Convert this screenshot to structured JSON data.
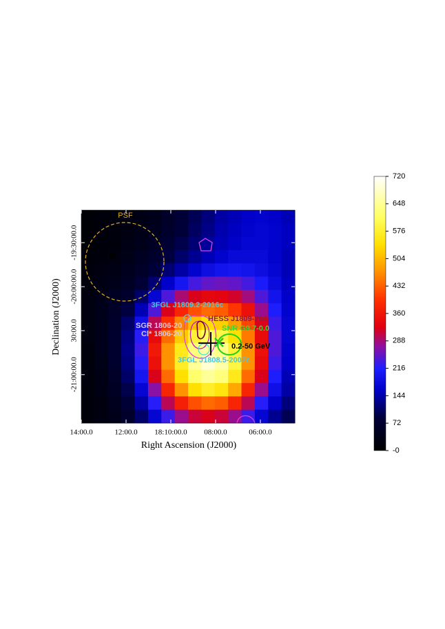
{
  "chart_data": {
    "type": "heatmap",
    "xlabel": "Right Ascension (J2000)",
    "ylabel": "Declination (J2000)",
    "xlim": [
      14,
      4.46
    ],
    "ylim": [
      -21.55,
      -19.13
    ],
    "xticks": [
      {
        "value": 14,
        "label": "14:00.0"
      },
      {
        "value": 12,
        "label": "12:00.0"
      },
      {
        "value": 10,
        "label": "18:10:00.0"
      },
      {
        "value": 8,
        "label": "08:00.0"
      },
      {
        "value": 6,
        "label": "06:00.0"
      }
    ],
    "yticks": [
      {
        "value": -19.5,
        "label": "-19:30:00.0"
      },
      {
        "value": -20.0,
        "label": "-20:00:00.0"
      },
      {
        "value": -20.5,
        "label": "30:00.0"
      },
      {
        "value": -21.0,
        "label": "-21:00:00.0"
      }
    ],
    "zlim": [
      0,
      720
    ],
    "zticks": [
      {
        "value": 0,
        "label": "-0"
      },
      72,
      144,
      216,
      288,
      360,
      432,
      504,
      576,
      648,
      720
    ],
    "annotations": [
      "PSF",
      "3FGL J1809.2-2016c",
      "HESS J1809-204",
      "SNR G9.7-0.0",
      "SGR 1806-20",
      "Cl* 1806-20",
      "0.2-50 GeV",
      "3FGL J1808.5-2007c"
    ],
    "z": [
      [
        10,
        15,
        20,
        25,
        30,
        40,
        60,
        80,
        100,
        120,
        140,
        150,
        160,
        165,
        160,
        150
      ],
      [
        10,
        15,
        20,
        25,
        35,
        45,
        65,
        85,
        105,
        125,
        145,
        155,
        165,
        170,
        165,
        155
      ],
      [
        10,
        15,
        20,
        30,
        40,
        55,
        75,
        95,
        115,
        135,
        150,
        160,
        170,
        170,
        165,
        155
      ],
      [
        15,
        20,
        25,
        35,
        50,
        65,
        90,
        110,
        130,
        150,
        165,
        175,
        175,
        175,
        165,
        150
      ],
      [
        20,
        25,
        30,
        45,
        60,
        85,
        115,
        140,
        165,
        185,
        195,
        200,
        195,
        185,
        170,
        150
      ],
      [
        20,
        30,
        40,
        55,
        80,
        115,
        160,
        200,
        235,
        250,
        255,
        250,
        235,
        210,
        180,
        155
      ],
      [
        25,
        35,
        50,
        70,
        110,
        170,
        240,
        290,
        320,
        335,
        330,
        315,
        285,
        240,
        195,
        160
      ],
      [
        25,
        40,
        60,
        90,
        150,
        240,
        320,
        380,
        420,
        440,
        430,
        400,
        350,
        280,
        215,
        165
      ],
      [
        25,
        40,
        65,
        110,
        190,
        300,
        390,
        460,
        510,
        540,
        525,
        480,
        410,
        320,
        230,
        170
      ],
      [
        25,
        40,
        70,
        120,
        220,
        340,
        440,
        520,
        580,
        610,
        590,
        540,
        450,
        340,
        240,
        170
      ],
      [
        20,
        40,
        70,
        125,
        230,
        360,
        470,
        560,
        630,
        660,
        640,
        580,
        470,
        350,
        240,
        165
      ],
      [
        20,
        35,
        65,
        120,
        220,
        350,
        470,
        570,
        650,
        690,
        660,
        590,
        470,
        340,
        230,
        160
      ],
      [
        20,
        30,
        60,
        110,
        200,
        320,
        440,
        540,
        620,
        650,
        630,
        560,
        440,
        320,
        215,
        150
      ],
      [
        15,
        30,
        55,
        95,
        170,
        270,
        380,
        470,
        540,
        570,
        550,
        490,
        380,
        280,
        190,
        140
      ],
      [
        15,
        25,
        45,
        80,
        140,
        220,
        300,
        370,
        420,
        440,
        430,
        380,
        300,
        220,
        160,
        120
      ],
      [
        15,
        25,
        40,
        65,
        110,
        170,
        230,
        280,
        310,
        320,
        310,
        280,
        230,
        170,
        130,
        100
      ]
    ]
  }
}
